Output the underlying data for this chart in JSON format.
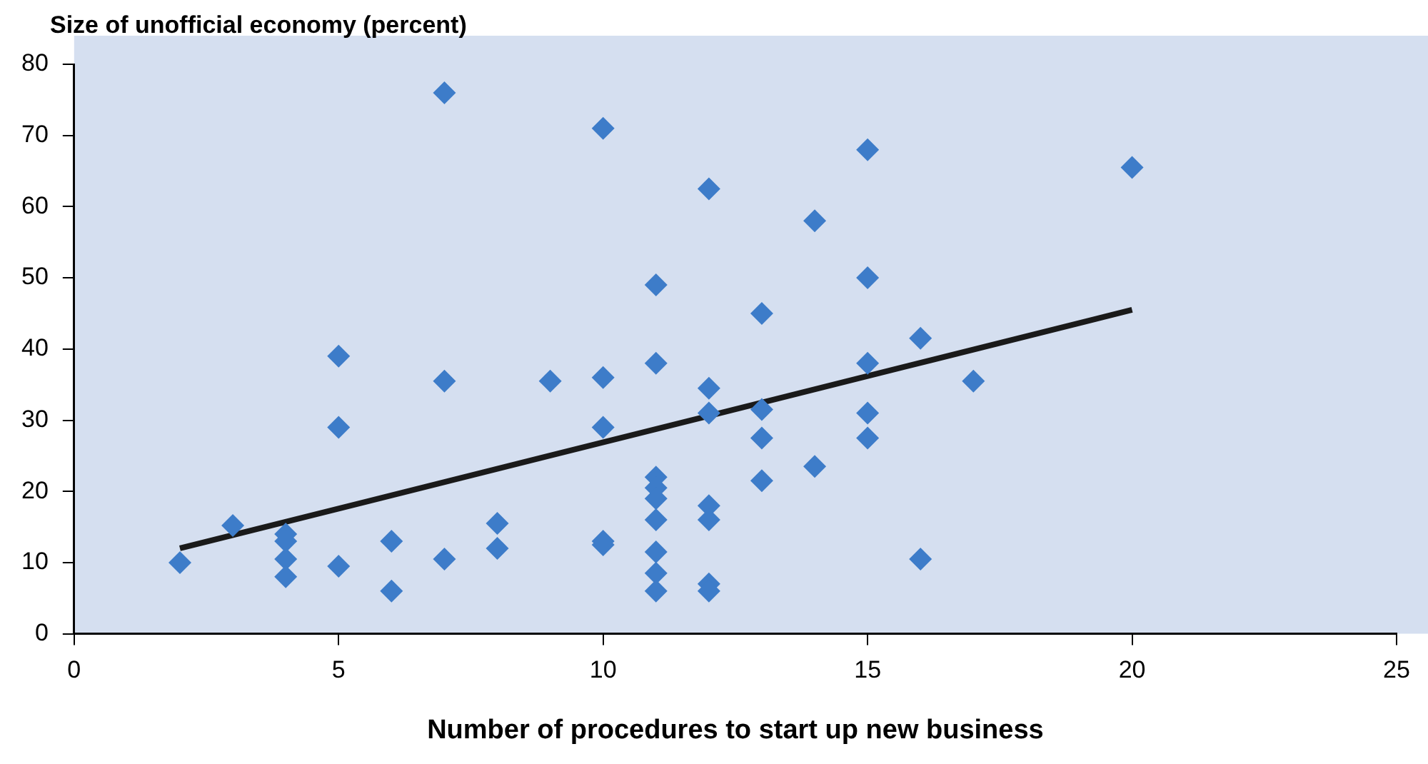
{
  "chart_data": {
    "type": "scatter",
    "xlabel": "Number of procedures to start up new business",
    "ylabel": "Size of unofficial economy (percent)",
    "xlim": [
      0,
      25
    ],
    "xticks": [
      0,
      5,
      10,
      15,
      20,
      25
    ],
    "ylim": [
      0,
      80
    ],
    "yticks": [
      0,
      10,
      20,
      30,
      40,
      50,
      60,
      70,
      80
    ],
    "grid": false,
    "legend": false,
    "series": [
      {
        "marker": "diamond",
        "color": "#3d7cc9",
        "x": [
          2,
          3,
          4,
          4,
          4,
          4,
          5,
          5,
          5,
          6,
          6,
          7,
          7,
          7,
          8,
          8,
          9,
          10,
          10,
          10,
          10,
          10,
          11,
          11,
          11,
          11,
          11,
          11,
          11,
          11,
          11,
          12,
          12,
          12,
          12,
          12,
          12,
          12,
          13,
          13,
          13,
          13,
          14,
          14,
          15,
          15,
          15,
          15,
          15,
          16,
          16,
          17,
          20
        ],
        "values": [
          10,
          15.2,
          14,
          13,
          10.5,
          8,
          39,
          29,
          9.5,
          13,
          6,
          76,
          35.5,
          10.5,
          15.5,
          12,
          35.5,
          71,
          36,
          29,
          13,
          12.5,
          49,
          38,
          22,
          20.5,
          19,
          16,
          11.5,
          8.5,
          6,
          62.5,
          34.5,
          31,
          18,
          16,
          7,
          6,
          45,
          31.5,
          27.5,
          21.5,
          58,
          23.5,
          68,
          50,
          38,
          31,
          27.5,
          41.5,
          10.5,
          35.5,
          65.5
        ]
      },
      {
        "type": "line",
        "marker": "none",
        "color": "#1a1a1a",
        "x": [
          2,
          20
        ],
        "values": [
          12,
          45.5
        ]
      }
    ]
  }
}
